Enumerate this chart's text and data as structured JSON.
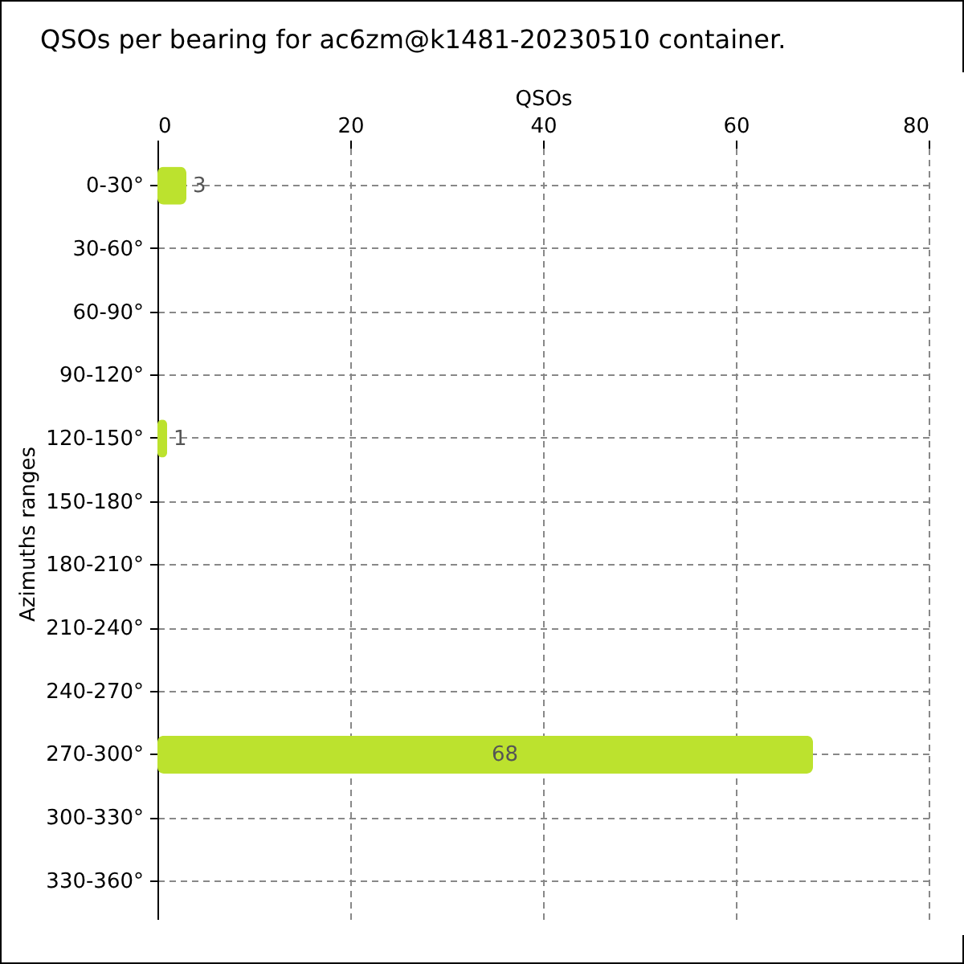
{
  "chart_data": {
    "type": "bar",
    "orientation": "horizontal",
    "title": "QSOs per bearing for ac6zm@k1481-20230510 container.",
    "xlabel": "QSOs",
    "ylabel": "Azimuths ranges",
    "categories": [
      "0-30°",
      "30-60°",
      "60-90°",
      "90-120°",
      "120-150°",
      "150-180°",
      "180-210°",
      "210-240°",
      "240-270°",
      "270-300°",
      "300-330°",
      "330-360°"
    ],
    "values": [
      3,
      0,
      0,
      0,
      1,
      0,
      0,
      0,
      0,
      68,
      0,
      0
    ],
    "value_labels": [
      "3",
      null,
      null,
      null,
      "1",
      null,
      null,
      null,
      null,
      "68",
      null,
      null
    ],
    "color": "#bce22e",
    "xlim": [
      0,
      80
    ],
    "xticks": [
      0,
      20,
      40,
      60,
      80
    ],
    "grid": true
  }
}
